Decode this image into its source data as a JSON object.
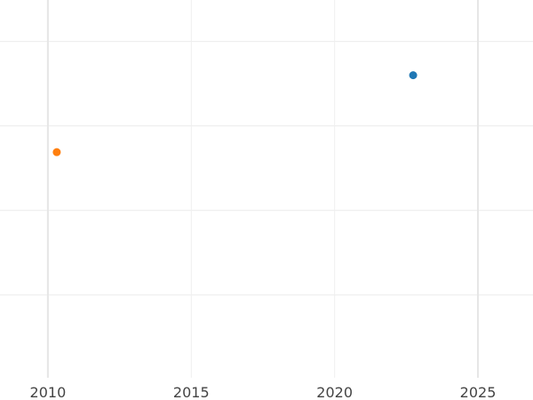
{
  "chart_data": {
    "type": "scatter",
    "title": "",
    "xlabel": "",
    "ylabel": "",
    "xlim": [
      2008.33,
      2026.92
    ],
    "ylim": [
      -0.98,
      3.49
    ],
    "x_ticks": [
      2010,
      2015,
      2020,
      2025
    ],
    "x_tick_labels": [
      "2010",
      "2015",
      "2020",
      "2025"
    ],
    "y_gridlines": [
      0,
      1,
      2,
      3
    ],
    "y_tick_labels_shown": false,
    "grid": true,
    "legend": "none",
    "series": [
      {
        "color": "#1f77b4",
        "points": [
          {
            "x": 2022.74,
            "y": 2.6
          }
        ]
      },
      {
        "color": "#ff7f0e",
        "points": [
          {
            "x": 2010.31,
            "y": 1.69
          }
        ]
      }
    ]
  }
}
